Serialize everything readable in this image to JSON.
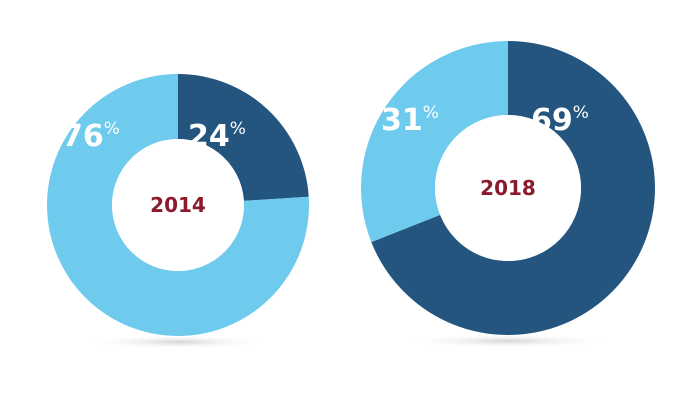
{
  "chart_data": [
    {
      "type": "pie",
      "variant": "donut",
      "center_label": "2014",
      "slices": [
        {
          "value": 24,
          "label": "24",
          "unit": "%",
          "color": "#23557f"
        },
        {
          "value": 76,
          "label": "76",
          "unit": "%",
          "color": "#6fcbee"
        }
      ]
    },
    {
      "type": "pie",
      "variant": "donut",
      "center_label": "2018",
      "slices": [
        {
          "value": 69,
          "label": "69",
          "unit": "%",
          "color": "#23557f"
        },
        {
          "value": 31,
          "label": "31",
          "unit": "%",
          "color": "#6fcbee"
        }
      ]
    }
  ],
  "colors": {
    "center_text": "#8b1a2b",
    "label_text": "#ffffff",
    "shadow": "#d9d9d9"
  }
}
